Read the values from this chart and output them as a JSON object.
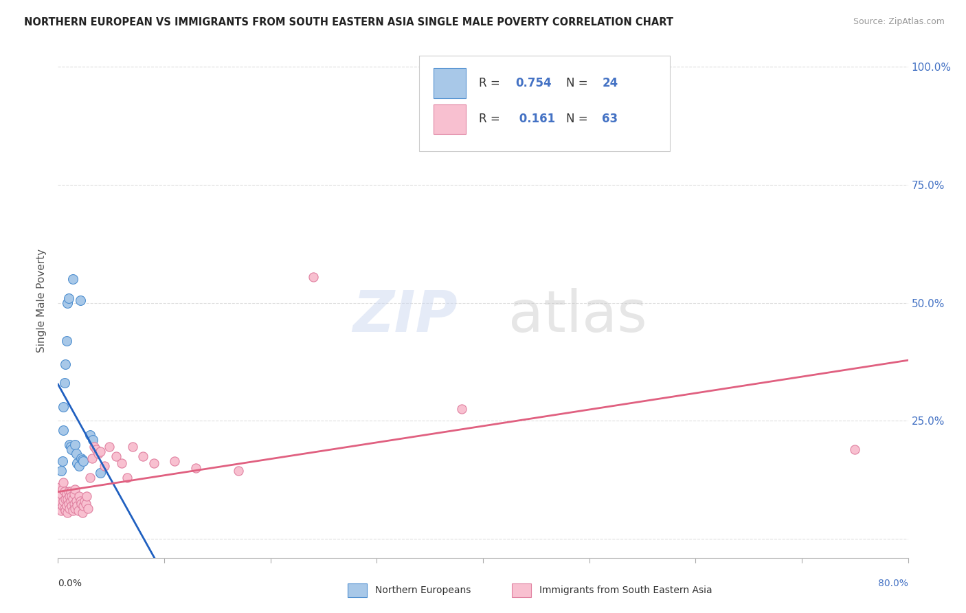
{
  "title": "NORTHERN EUROPEAN VS IMMIGRANTS FROM SOUTH EASTERN ASIA SINGLE MALE POVERTY CORRELATION CHART",
  "source": "Source: ZipAtlas.com",
  "ylabel": "Single Male Poverty",
  "right_yticklabels": [
    "",
    "25.0%",
    "50.0%",
    "75.0%",
    "100.0%"
  ],
  "legend1_R": "0.754",
  "legend1_N": "24",
  "legend2_R": "0.161",
  "legend2_N": "63",
  "legend_label1": "Northern Europeans",
  "legend_label2": "Immigrants from South Eastern Asia",
  "blue_color": "#a8c8e8",
  "blue_edge_color": "#5090d0",
  "blue_line_color": "#2060c0",
  "pink_color": "#f8c0d0",
  "pink_edge_color": "#e080a0",
  "pink_line_color": "#e06080",
  "grid_color": "#dddddd",
  "title_color": "#222222",
  "source_color": "#999999",
  "blue_x": [
    0.003,
    0.004,
    0.005,
    0.005,
    0.006,
    0.007,
    0.008,
    0.009,
    0.01,
    0.011,
    0.012,
    0.013,
    0.014,
    0.016,
    0.017,
    0.018,
    0.02,
    0.021,
    0.022,
    0.023,
    0.024,
    0.03,
    0.033,
    0.04
  ],
  "blue_y": [
    0.145,
    0.165,
    0.23,
    0.28,
    0.33,
    0.37,
    0.42,
    0.5,
    0.51,
    0.2,
    0.195,
    0.19,
    0.55,
    0.2,
    0.18,
    0.16,
    0.155,
    0.505,
    0.17,
    0.168,
    0.165,
    0.22,
    0.21,
    0.14
  ],
  "pink_x": [
    0.001,
    0.002,
    0.002,
    0.003,
    0.003,
    0.004,
    0.004,
    0.005,
    0.005,
    0.006,
    0.006,
    0.007,
    0.007,
    0.008,
    0.008,
    0.009,
    0.009,
    0.01,
    0.01,
    0.011,
    0.011,
    0.012,
    0.012,
    0.013,
    0.013,
    0.014,
    0.014,
    0.015,
    0.015,
    0.016,
    0.016,
    0.017,
    0.018,
    0.019,
    0.02,
    0.021,
    0.022,
    0.023,
    0.024,
    0.025,
    0.026,
    0.027,
    0.028,
    0.03,
    0.032,
    0.034,
    0.036,
    0.038,
    0.04,
    0.044,
    0.048,
    0.055,
    0.06,
    0.065,
    0.07,
    0.08,
    0.09,
    0.11,
    0.13,
    0.17,
    0.24,
    0.38,
    0.75
  ],
  "pink_y": [
    0.09,
    0.11,
    0.08,
    0.095,
    0.06,
    0.105,
    0.07,
    0.12,
    0.08,
    0.1,
    0.065,
    0.085,
    0.06,
    0.095,
    0.07,
    0.085,
    0.055,
    0.1,
    0.075,
    0.09,
    0.065,
    0.08,
    0.1,
    0.07,
    0.09,
    0.06,
    0.085,
    0.075,
    0.095,
    0.065,
    0.105,
    0.08,
    0.07,
    0.06,
    0.09,
    0.08,
    0.075,
    0.055,
    0.07,
    0.08,
    0.075,
    0.09,
    0.065,
    0.13,
    0.17,
    0.195,
    0.19,
    0.18,
    0.185,
    0.155,
    0.195,
    0.175,
    0.16,
    0.13,
    0.195,
    0.175,
    0.16,
    0.165,
    0.15,
    0.145,
    0.555,
    0.275,
    0.19
  ],
  "xmin": 0.0,
  "xmax": 0.8,
  "ymin": -0.04,
  "ymax": 1.05,
  "yticks": [
    0.0,
    0.25,
    0.5,
    0.75,
    1.0
  ],
  "xticks": [
    0.0,
    0.1,
    0.2,
    0.3,
    0.4,
    0.5,
    0.6,
    0.7,
    0.8
  ],
  "figwidth": 14.06,
  "figheight": 8.92,
  "dpi": 100
}
